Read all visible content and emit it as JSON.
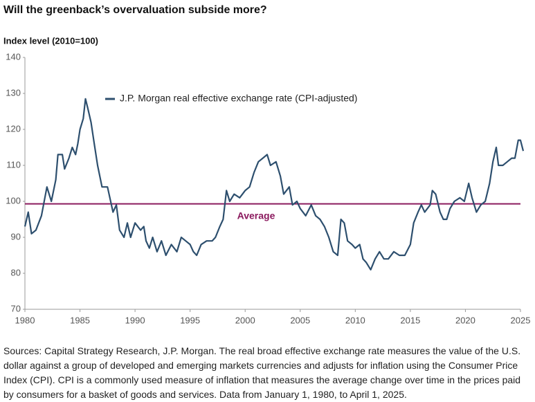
{
  "chart_data": {
    "type": "line",
    "title": "Will the greenback’s overvaluation subside more?",
    "y_axis_label": "Index level (2010=100)",
    "x": [
      1980.0,
      1980.3,
      1980.6,
      1981.0,
      1981.5,
      1982.0,
      1982.4,
      1982.8,
      1983.0,
      1983.4,
      1983.6,
      1984.0,
      1984.3,
      1984.6,
      1984.8,
      1985.0,
      1985.3,
      1985.5,
      1985.7,
      1986.0,
      1986.3,
      1986.6,
      1987.0,
      1987.5,
      1988.0,
      1988.3,
      1988.6,
      1989.0,
      1989.3,
      1989.6,
      1990.0,
      1990.5,
      1990.8,
      1991.0,
      1991.3,
      1991.6,
      1992.0,
      1992.4,
      1992.8,
      1993.3,
      1993.8,
      1994.2,
      1994.6,
      1995.0,
      1995.3,
      1995.6,
      1996.0,
      1996.5,
      1997.0,
      1997.3,
      1997.7,
      1998.0,
      1998.3,
      1998.6,
      1999.0,
      1999.5,
      2000.0,
      2000.4,
      2000.8,
      2001.2,
      2001.6,
      2002.0,
      2002.3,
      2002.8,
      2003.2,
      2003.5,
      2004.0,
      2004.3,
      2004.7,
      2005.0,
      2005.5,
      2006.0,
      2006.4,
      2006.8,
      2007.2,
      2007.6,
      2008.0,
      2008.4,
      2008.7,
      2009.0,
      2009.3,
      2009.7,
      2010.0,
      2010.4,
      2010.7,
      2011.0,
      2011.4,
      2011.8,
      2012.2,
      2012.6,
      2013.0,
      2013.5,
      2014.0,
      2014.5,
      2015.0,
      2015.3,
      2015.7,
      2016.0,
      2016.3,
      2016.8,
      2017.0,
      2017.3,
      2017.7,
      2018.0,
      2018.3,
      2018.6,
      2019.0,
      2019.5,
      2019.9,
      2020.3,
      2020.6,
      2021.0,
      2021.4,
      2021.8,
      2022.2,
      2022.5,
      2022.8,
      2023.0,
      2023.4,
      2023.8,
      2024.2,
      2024.5,
      2024.8,
      2025.0,
      2025.25
    ],
    "series": [
      {
        "name": "J.P. Morgan real effective exchange rate (CPI-adjusted)",
        "color": "#2d4f6e",
        "values": [
          93,
          97,
          91,
          92,
          96,
          104,
          100,
          106,
          113,
          113,
          109,
          112,
          115,
          113,
          116,
          120,
          123,
          128.5,
          126,
          122,
          116,
          110,
          104,
          104,
          97,
          99,
          92,
          90,
          94,
          90,
          94,
          92,
          93,
          89,
          87,
          90,
          86,
          89,
          85,
          88,
          86,
          90,
          89,
          88,
          86,
          85,
          88,
          89,
          89,
          90,
          93,
          95,
          103,
          100,
          102,
          101,
          103,
          104,
          108,
          111,
          112,
          113,
          110,
          111,
          107,
          102,
          104,
          99,
          100,
          98,
          96,
          99,
          96,
          95,
          93,
          90,
          86,
          85,
          95,
          94,
          89,
          88,
          87,
          88,
          84,
          83,
          81,
          84,
          86,
          84,
          84,
          86,
          85,
          85,
          88,
          94,
          97,
          99,
          97,
          99,
          103,
          102,
          97,
          95,
          95,
          98,
          100,
          101,
          100,
          105,
          101,
          97,
          99,
          100,
          105,
          111,
          115,
          110,
          110,
          111,
          112,
          112,
          117,
          117,
          114
        ]
      }
    ],
    "average": {
      "label": "Average",
      "value": 99.3,
      "color": "#8b1a5e"
    },
    "xlim": [
      1980,
      2025
    ],
    "xticks": [
      1980,
      1985,
      1990,
      1995,
      2000,
      2005,
      2010,
      2015,
      2020,
      2025
    ],
    "ylim": [
      70,
      140
    ],
    "yticks": [
      70,
      80,
      90,
      100,
      110,
      120,
      130,
      140
    ],
    "footnote": "Sources: Capital Strategy Research, J.P. Morgan. The real broad effective exchange rate measures the value of the U.S. dollar against a group of developed and emerging markets currencies and adjusts for inflation using the Consumer Price Index (CPI). CPI is a commonly used measure of inflation that measures the average change over time in the prices paid by consumers for a basket of goods and services. Data from January 1, 1980, to April 1, 2025."
  }
}
